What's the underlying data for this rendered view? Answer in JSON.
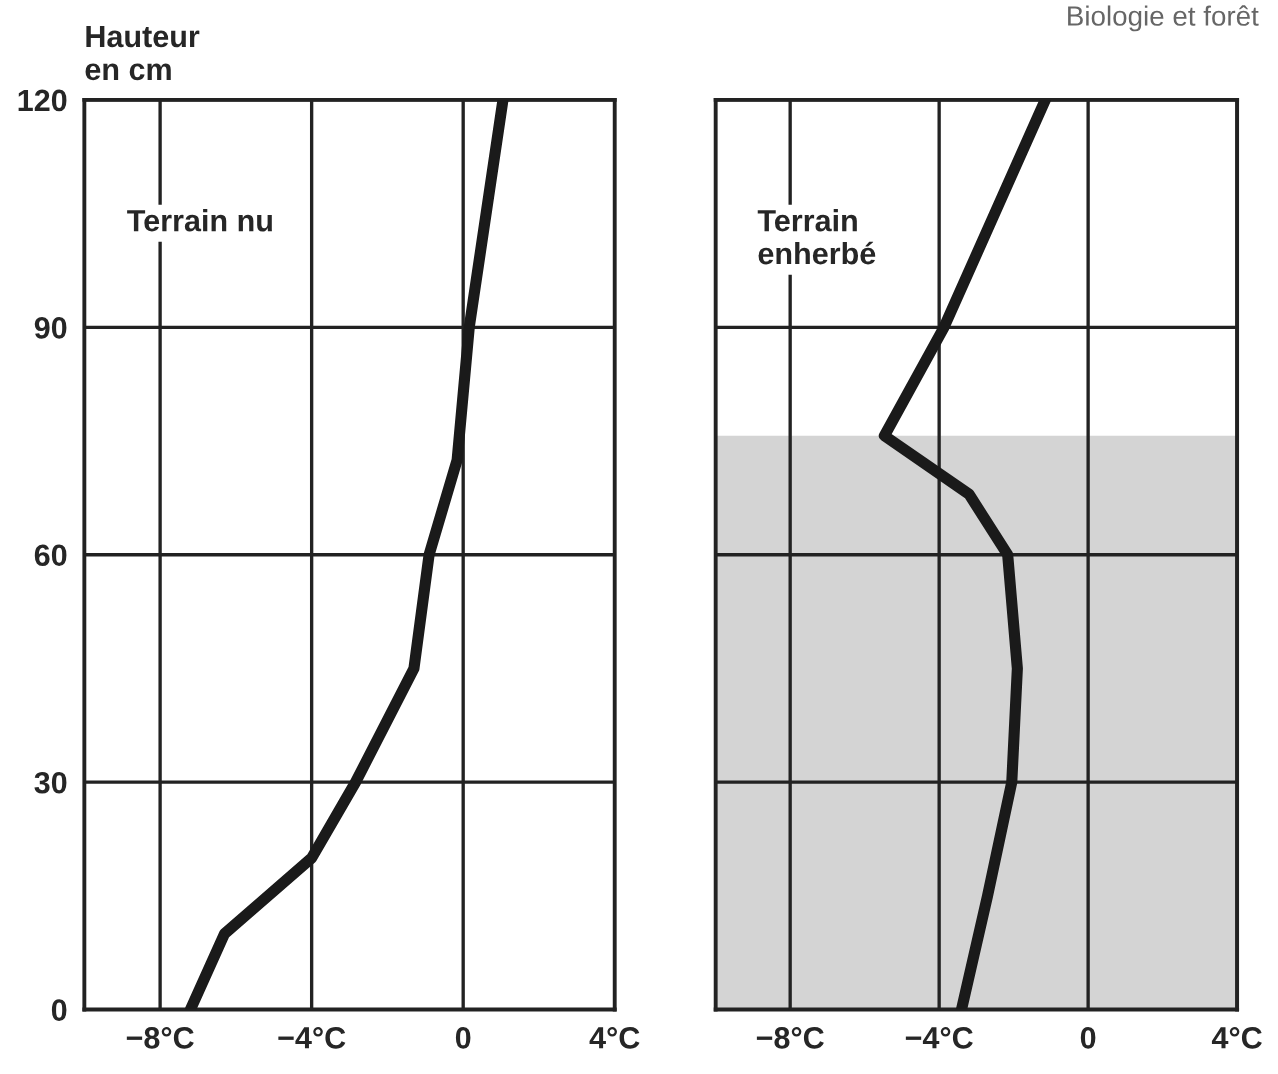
{
  "chart_data": [
    {
      "type": "line",
      "ylabel": "Hauteur\nen cm",
      "annotations": [
        "Terrain nu"
      ],
      "series": [
        {
          "color": "#1a1a1a",
          "x": [
            -7.2,
            -6.3,
            -4.0,
            -2.84,
            -1.3,
            -0.9,
            -0.16,
            0.16,
            1.05
          ],
          "values": [
            0,
            10,
            20,
            30,
            45,
            60,
            72.5,
            90,
            120
          ]
        }
      ],
      "xlim": [
        -10,
        4
      ],
      "xticks": [
        {
          "value": -8,
          "label": "−8°C"
        },
        {
          "value": -4,
          "label": "−4°C"
        },
        0,
        {
          "value": 4,
          "label": "4°C"
        }
      ],
      "ylim": [
        0,
        120
      ],
      "yticks": [
        0,
        30,
        60,
        90,
        120
      ],
      "grid": true
    },
    {
      "type": "line",
      "title": "Biologie et forêt",
      "annotations": [
        "Terrain\nenherbé"
      ],
      "series": [
        {
          "color": "#1a1a1a",
          "x": [
            -3.4,
            -2.7,
            -2.05,
            -1.9,
            -2.16,
            -3.2,
            -5.47,
            -3.87,
            -1.15
          ],
          "values": [
            0,
            15,
            30,
            45,
            60,
            68,
            75.7,
            90,
            120
          ]
        }
      ],
      "xlim": [
        -10,
        4
      ],
      "xticks": [
        {
          "value": -8,
          "label": "−8°C"
        },
        {
          "value": -4,
          "label": "−4°C"
        },
        0,
        {
          "value": 4,
          "label": "4°C"
        }
      ],
      "ylim": [
        0,
        120
      ],
      "yticks": [
        0,
        30,
        60,
        90,
        120
      ],
      "grid": true,
      "tick_labels": "x",
      "bands": [
        {
          "axis": "y",
          "from": 0,
          "to": 75.7,
          "color": "#d4d4d4"
        }
      ]
    }
  ]
}
